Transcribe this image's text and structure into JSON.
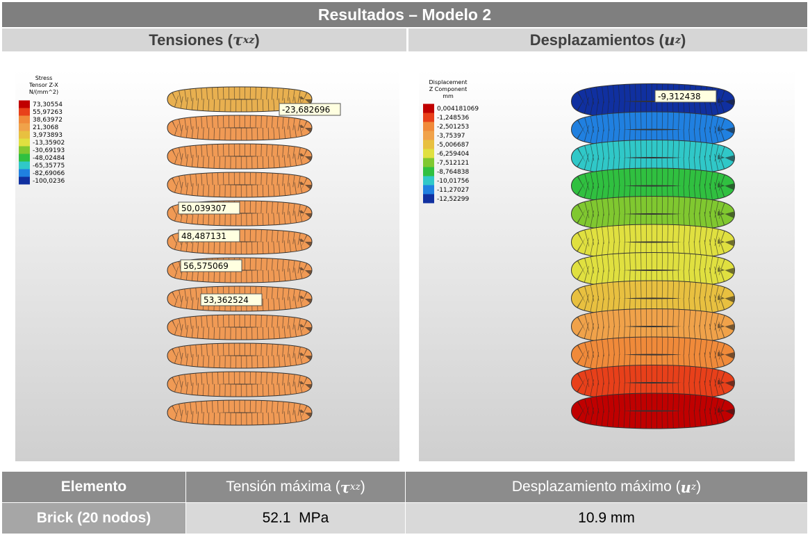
{
  "title": "Resultados – Modelo 2",
  "panels": [
    {
      "header": {
        "prefix": "Tensiones (",
        "symbol": "τ",
        "subscript": "xz",
        "suffix": ")"
      },
      "legend": {
        "title": [
          "Stress",
          "Tensor Z-X",
          "N/(mm^2)"
        ],
        "values": [
          "73,30554",
          "55,97263",
          "38,63972",
          "21,3068",
          "3,973893",
          "-13,35902",
          "-30,69193",
          "-48,02484",
          "-65,35775",
          "-82,69066",
          "-100,0236"
        ]
      },
      "callouts": [
        "-23,682696",
        "50,039307",
        "48,487131",
        "56,575069",
        "53,362524"
      ]
    },
    {
      "header": {
        "prefix": "Desplazamientos (",
        "symbol": "u",
        "subscript": "z",
        "suffix": ")"
      },
      "legend": {
        "title": [
          "Displacement",
          "Z Component",
          "mm"
        ],
        "values": [
          "0,004181069",
          "-1,248536",
          "-2,501253",
          "-3,75397",
          "-5,006687",
          "-6,259404",
          "-7,512121",
          "-8,764838",
          "-10,01756",
          "-11,27027",
          "-12,52299"
        ]
      },
      "callouts": [
        "-9,312438"
      ]
    }
  ],
  "table": {
    "header": [
      "Elemento",
      {
        "prefix": "Tensión máxima (",
        "symbol": "τ",
        "subscript": "xz",
        "suffix": ")"
      },
      {
        "prefix": "Desplazamiento máximo (",
        "symbol": "u",
        "subscript": "z",
        "suffix": ")"
      }
    ],
    "rows": [
      [
        "Brick (20 nodos)",
        "52.1  MPa",
        "10.9 mm"
      ]
    ]
  }
}
